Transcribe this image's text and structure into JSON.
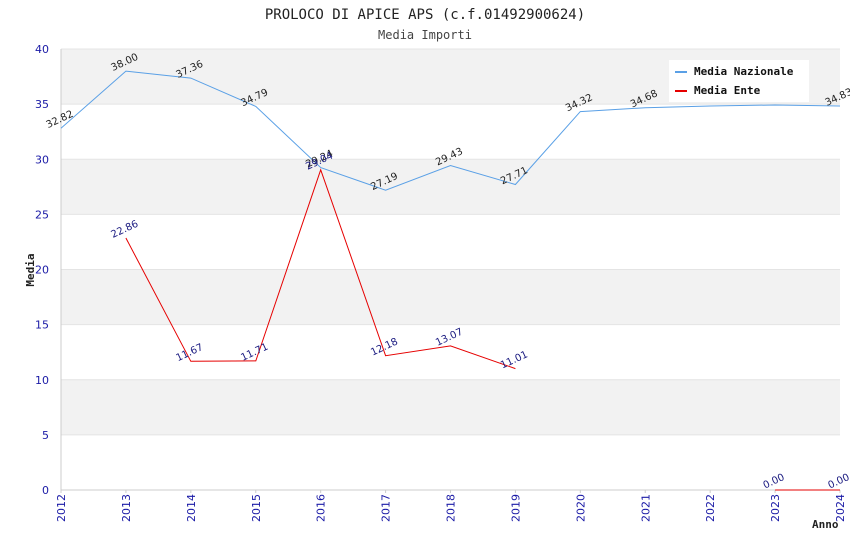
{
  "chart_data": {
    "type": "line",
    "title": "PROLOCO DI APICE APS (c.f.01492900624)",
    "subtitle": "Media Importi",
    "xlabel": "Anno",
    "ylabel": "Media",
    "x": [
      "2012",
      "2013",
      "2014",
      "2015",
      "2016",
      "2017",
      "2018",
      "2019",
      "2020",
      "2021",
      "2022",
      "2023",
      "2024"
    ],
    "ylim": [
      0,
      40
    ],
    "yticks": [
      "0",
      "5",
      "10",
      "15",
      "20",
      "25",
      "30",
      "35",
      "40"
    ],
    "legend_position": "top-right",
    "grid": "horizontal-bands",
    "series": [
      {
        "name": "Media Nazionale",
        "color": "#5aa0e6",
        "values": [
          32.82,
          38.0,
          37.36,
          34.79,
          29.24,
          27.19,
          29.43,
          27.71,
          34.32,
          34.68,
          34.83,
          34.92,
          34.83
        ],
        "labels": [
          "32.82",
          "38.00",
          "37.36",
          "34.79",
          "29.24",
          "27.19",
          "29.43",
          "27.71",
          "34.32",
          "34.68",
          "",
          "",
          "34.83"
        ]
      },
      {
        "name": "Media Ente",
        "color": "#e60000",
        "values": [
          null,
          22.86,
          11.67,
          11.71,
          29.04,
          12.18,
          13.07,
          11.01,
          null,
          null,
          null,
          0.0,
          0.0
        ],
        "labels": [
          "",
          "22.86",
          "11.67",
          "11.71",
          "29.04",
          "12.18",
          "13.07",
          "11.01",
          "",
          "",
          "",
          "0.00",
          "0.00"
        ]
      }
    ]
  }
}
